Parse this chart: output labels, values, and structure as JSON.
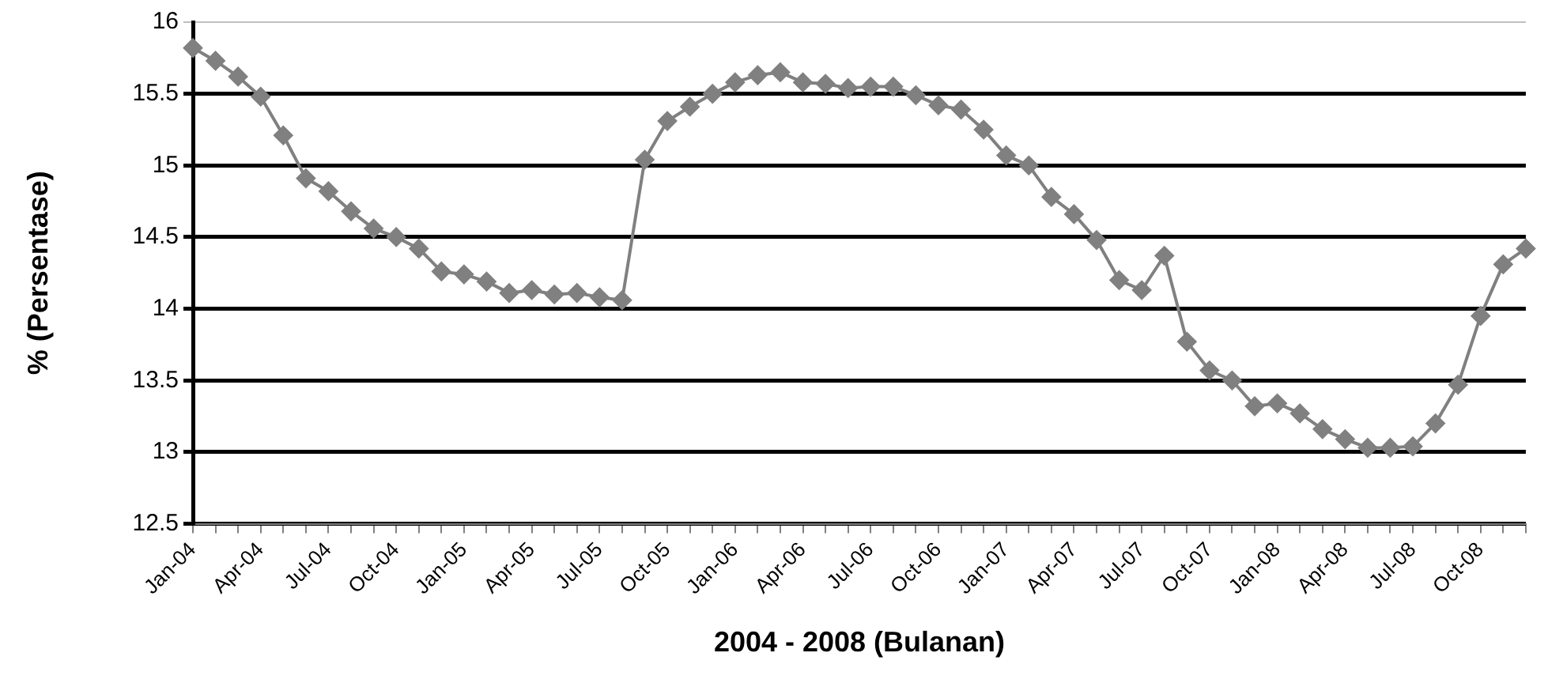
{
  "chart_data": {
    "type": "line",
    "xlabel": "2004 - 2008 (Bulanan)",
    "ylabel": "% (Persentase)",
    "categories": [
      "Jan-04",
      null,
      null,
      "Apr-04",
      null,
      null,
      "Jul-04",
      null,
      null,
      "Oct-04",
      null,
      null,
      "Jan-05",
      null,
      null,
      "Apr-05",
      null,
      null,
      "Jul-05",
      null,
      null,
      "Oct-05",
      null,
      null,
      "Jan-06",
      null,
      null,
      "Apr-06",
      null,
      null,
      "Jul-06",
      null,
      null,
      "Oct-06",
      null,
      null,
      "Jan-07",
      null,
      null,
      "Apr-07",
      null,
      null,
      "Jul-07",
      null,
      null,
      "Oct-07",
      null,
      null,
      "Jan-08",
      null,
      null,
      "Apr-08",
      null,
      null,
      "Jul-08",
      null,
      null,
      "Oct-08",
      null,
      null
    ],
    "series": [
      {
        "color": "#808080",
        "values": [
          15.82,
          15.73,
          15.62,
          15.48,
          15.21,
          14.91,
          14.82,
          14.68,
          14.56,
          14.5,
          14.42,
          14.26,
          14.24,
          14.19,
          14.11,
          14.13,
          14.1,
          14.11,
          14.08,
          14.06,
          15.04,
          15.31,
          15.41,
          15.5,
          15.58,
          15.63,
          15.65,
          15.58,
          15.57,
          15.54,
          15.55,
          15.55,
          15.49,
          15.42,
          15.39,
          15.25,
          15.07,
          15.0,
          14.78,
          14.66,
          14.48,
          14.2,
          14.13,
          14.37,
          13.77,
          13.57,
          13.5,
          13.32,
          13.34,
          13.27,
          13.16,
          13.09,
          13.03,
          13.03,
          13.04,
          13.2,
          13.47,
          13.95,
          14.31,
          14.42
        ]
      }
    ],
    "ylim": [
      12.5,
      16
    ],
    "yticks": [
      12.5,
      13,
      13.5,
      14,
      14.5,
      15,
      15.5,
      16
    ],
    "grid": "y",
    "legend": false,
    "marker": "diamond",
    "line_style": "solid"
  }
}
